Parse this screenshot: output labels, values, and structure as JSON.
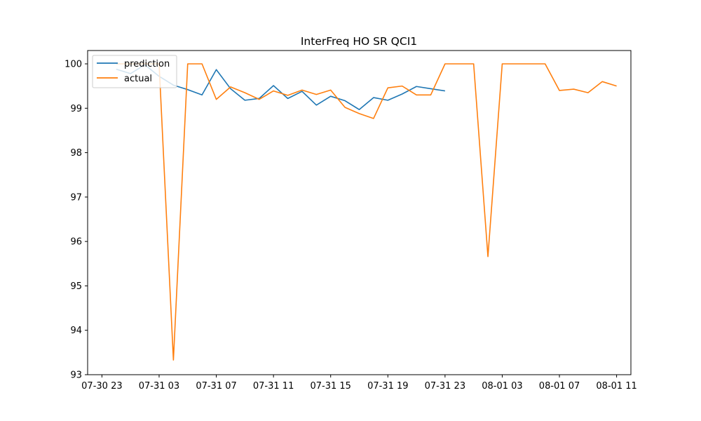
{
  "chart_data": {
    "type": "line",
    "title": "InterFreq HO SR QCI1",
    "xlabel": "",
    "ylabel": "",
    "x_unit": "hours",
    "xlim": [
      "07-30 22",
      "08-01 12"
    ],
    "ylim": [
      93,
      100.3
    ],
    "grid": false,
    "legend_position": "top-left",
    "x_ticks": [
      {
        "label": "07-30 23",
        "x": "07-30 23"
      },
      {
        "label": "07-31 03",
        "x": "07-31 03"
      },
      {
        "label": "07-31 07",
        "x": "07-31 07"
      },
      {
        "label": "07-31 11",
        "x": "07-31 11"
      },
      {
        "label": "07-31 15",
        "x": "07-31 15"
      },
      {
        "label": "07-31 19",
        "x": "07-31 19"
      },
      {
        "label": "07-31 23",
        "x": "07-31 23"
      },
      {
        "label": "08-01 03",
        "x": "08-01 03"
      },
      {
        "label": "08-01 07",
        "x": "08-01 07"
      },
      {
        "label": "08-01 11",
        "x": "08-01 11"
      }
    ],
    "y_ticks": [
      93,
      94,
      95,
      96,
      97,
      98,
      99,
      100
    ],
    "series": [
      {
        "name": "prediction",
        "color": "#1f77b4",
        "x": [
          "07-31 00",
          "07-31 01",
          "07-31 02",
          "07-31 03",
          "07-31 04",
          "07-31 05",
          "07-31 06",
          "07-31 07",
          "07-31 08",
          "07-31 09",
          "07-31 10",
          "07-31 11",
          "07-31 12",
          "07-31 13",
          "07-31 14",
          "07-31 15",
          "07-31 16",
          "07-31 17",
          "07-31 18",
          "07-31 19",
          "07-31 20",
          "07-31 21",
          "07-31 22",
          "07-31 23"
        ],
        "y": [
          99.88,
          99.78,
          99.98,
          99.72,
          99.52,
          99.42,
          99.3,
          99.87,
          99.44,
          99.18,
          99.22,
          99.51,
          99.22,
          99.38,
          99.07,
          99.27,
          99.17,
          98.97,
          99.24,
          99.18,
          99.32,
          99.49,
          99.44,
          99.39
        ]
      },
      {
        "name": "actual",
        "color": "#ff7f0e",
        "x": [
          "07-31 00",
          "07-31 01",
          "07-31 02",
          "07-31 03",
          "07-31 04",
          "07-31 05",
          "07-31 06",
          "07-31 07",
          "07-31 08",
          "07-31 09",
          "07-31 10",
          "07-31 11",
          "07-31 12",
          "07-31 13",
          "07-31 14",
          "07-31 15",
          "07-31 16",
          "07-31 17",
          "07-31 18",
          "07-31 19",
          "07-31 20",
          "07-31 21",
          "07-31 22",
          "07-31 23",
          "08-01 00",
          "08-01 01",
          "08-01 02",
          "08-01 03",
          "08-01 04",
          "08-01 05",
          "08-01 06",
          "08-01 07",
          "08-01 08",
          "08-01 09",
          "08-01 10",
          "08-01 11"
        ],
        "y": [
          100.0,
          100.0,
          100.0,
          100.0,
          93.33,
          100.0,
          100.0,
          99.2,
          99.48,
          99.35,
          99.2,
          99.39,
          99.29,
          99.41,
          99.31,
          99.41,
          99.02,
          98.88,
          98.77,
          99.46,
          99.5,
          99.3,
          99.3,
          100.0,
          100.0,
          100.0,
          95.66,
          100.0,
          100.0,
          100.0,
          100.0,
          99.4,
          99.43,
          99.35,
          99.6,
          99.5
        ]
      }
    ]
  }
}
